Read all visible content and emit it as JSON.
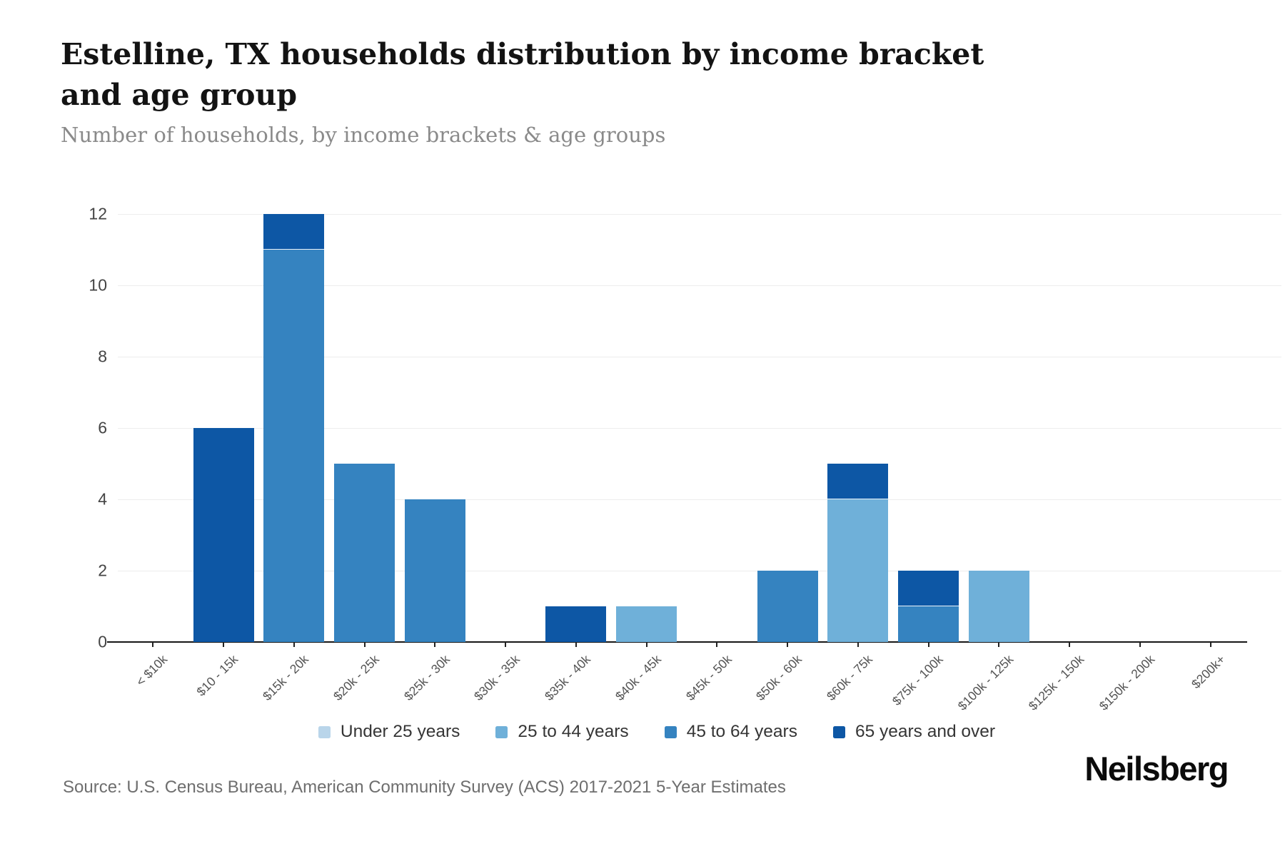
{
  "header": {
    "title": "Estelline, TX households distribution by income bracket and age group",
    "subtitle": "Number of households, by income brackets & age groups"
  },
  "footer": {
    "source": "Source: U.S. Census Bureau, American Community Survey (ACS) 2017-2021 5-Year Estimates",
    "brand": "Neilsberg"
  },
  "ui_colors": {
    "background": "#ffffff",
    "axis_line": "#161616",
    "gridline": "#ededed",
    "axis_text": "#545454",
    "title_text": "#131313",
    "subtitle_text": "#8a8a8a"
  },
  "chart_data": {
    "type": "bar",
    "stacked": true,
    "title": "Estelline, TX households distribution by income bracket and age group",
    "subtitle": "Number of households, by income brackets & age groups",
    "xlabel": "",
    "ylabel": "",
    "ylim": [
      0,
      12
    ],
    "yticks": [
      0,
      2,
      4,
      6,
      8,
      10,
      12
    ],
    "grid": true,
    "legend_position": "bottom",
    "categories": [
      "< $10k",
      "$10 - 15k",
      "$15k - 20k",
      "$20k - 25k",
      "$25k - 30k",
      "$30k - 35k",
      "$35k - 40k",
      "$40k - 45k",
      "$45k - 50k",
      "$50k - 60k",
      "$60k - 75k",
      "$75k - 100k",
      "$100k - 125k",
      "$125k - 150k",
      "$150k - 200k",
      "$200k+"
    ],
    "series": [
      {
        "name": "Under 25 years",
        "color": "#b9d5ea",
        "values": [
          0,
          0,
          0,
          0,
          0,
          0,
          0,
          0,
          0,
          0,
          0,
          0,
          0,
          0,
          0,
          0
        ]
      },
      {
        "name": "25 to 44 years",
        "color": "#6fb0d9",
        "values": [
          0,
          0,
          0,
          0,
          0,
          0,
          0,
          1,
          0,
          0,
          4,
          0,
          2,
          0,
          0,
          0
        ]
      },
      {
        "name": "45 to 64 years",
        "color": "#3583c0",
        "values": [
          0,
          0,
          11,
          5,
          4,
          0,
          0,
          0,
          0,
          2,
          0,
          1,
          0,
          0,
          0,
          0
        ]
      },
      {
        "name": "65 years and over",
        "color": "#0d57a5",
        "values": [
          0,
          6,
          1,
          0,
          0,
          0,
          1,
          0,
          0,
          0,
          1,
          1,
          0,
          0,
          0,
          0
        ]
      }
    ]
  }
}
